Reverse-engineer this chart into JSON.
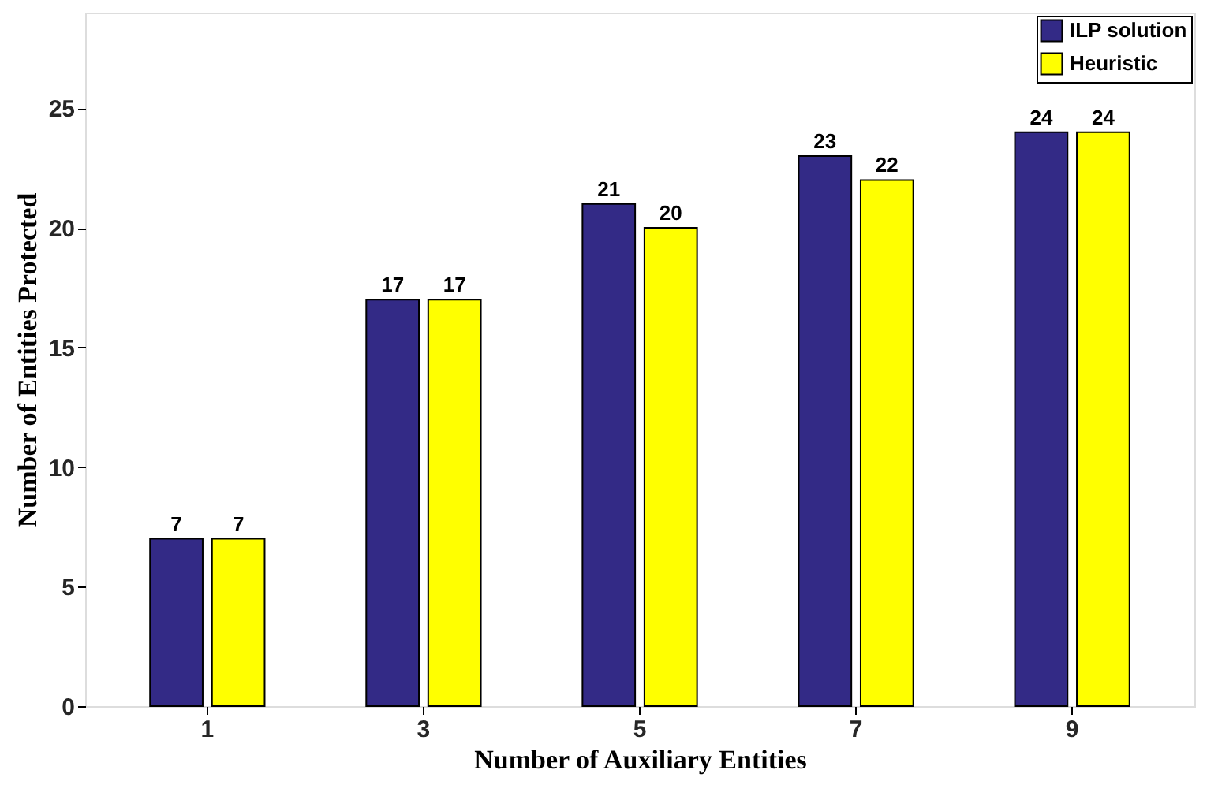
{
  "chart_data": {
    "type": "bar",
    "xlabel": "Number of Auxiliary Entities",
    "ylabel": "Number of Entities Protected",
    "categories": [
      "1",
      "3",
      "5",
      "7",
      "9"
    ],
    "series": [
      {
        "name": "ILP solution",
        "color": "#332a86",
        "values": [
          7,
          17,
          21,
          23,
          24
        ]
      },
      {
        "name": "Heuristic",
        "color": "#ffff00",
        "values": [
          7,
          17,
          20,
          22,
          24
        ]
      }
    ],
    "ylim": [
      0,
      29
    ],
    "yticks": [
      0,
      5,
      10,
      15,
      20,
      25
    ],
    "grid": false,
    "legend": "top right",
    "data_labels": true
  }
}
